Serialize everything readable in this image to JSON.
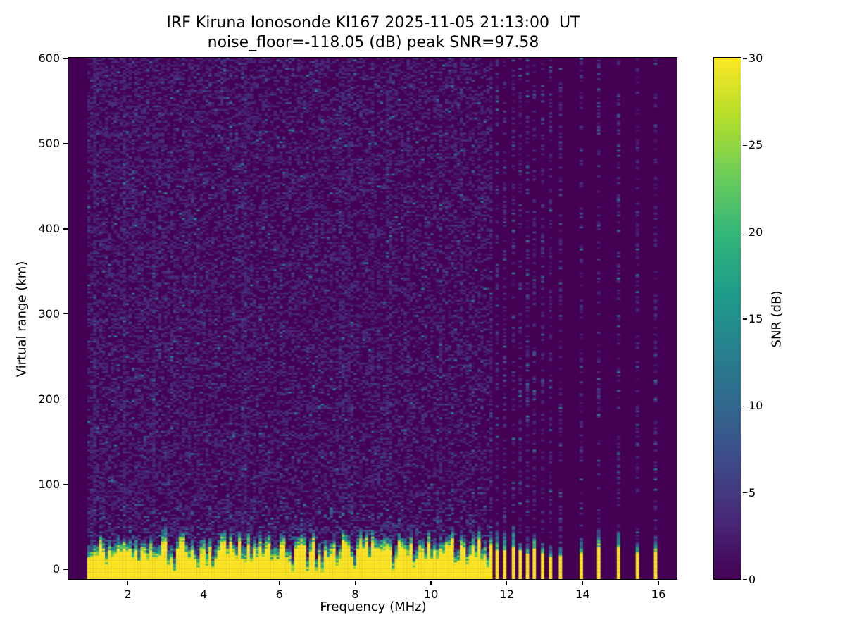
{
  "page": {
    "background": "#ffffff",
    "text_color": "#000000"
  },
  "chart_data": {
    "type": "heatmap",
    "title": "IRF Kiruna Ionosonde KI167 2025-11-05 21:13:00  UT",
    "subtitle": "noise_floor=-118.05 (dB) peak SNR=97.58",
    "station": "IRF Kiruna Ionosonde KI167",
    "datetime_ut": "2025-11-05 21:13:00",
    "noise_floor_db": -118.05,
    "peak_snr_db": 97.58,
    "xlabel": "Frequency (MHz)",
    "ylabel": "Virtual range (km)",
    "colorbar_label": "SNR (dB)",
    "x_ticks": [
      2,
      4,
      6,
      8,
      10,
      12,
      14,
      16
    ],
    "y_ticks": [
      0,
      100,
      200,
      300,
      400,
      500,
      600
    ],
    "colorbar_ticks": [
      0,
      5,
      10,
      15,
      20,
      25,
      30
    ],
    "xlim": [
      0.45,
      16.5
    ],
    "ylim": [
      -12,
      600
    ],
    "clim": [
      0,
      30
    ],
    "grid": false,
    "legend": "colorbar-right",
    "colormap": "viridis",
    "viridis_stops": [
      "#440154",
      "#482878",
      "#3e4a89",
      "#31688e",
      "#26828e",
      "#1f9e89",
      "#35b779",
      "#6ece58",
      "#b5de2b",
      "#fde725"
    ],
    "sweep": {
      "f_start_mhz": 0.95,
      "f_end_mhz": 11.62,
      "f_step_mhz": 0.078,
      "range_start_km": -12,
      "range_end_km": 600,
      "range_step_km": 2
    },
    "discrete_channels_mhz": [
      11.76,
      11.96,
      12.19,
      12.37,
      12.56,
      12.74,
      12.96,
      13.17,
      13.43,
      13.98,
      14.44,
      14.96,
      15.46,
      15.94
    ],
    "ground_clutter": {
      "snr_db": 30,
      "top_km_mean": 30,
      "top_km_jitter": 13,
      "notch_freqs_mhz": [
        3.05,
        4.25,
        6.3,
        6.95,
        7.5,
        8.0,
        8.95,
        9.55,
        10.6,
        11.5
      ]
    },
    "noise": {
      "background_snr_db": 0,
      "speckle_typ_db": 3,
      "speckle_max_db": 13,
      "seed": 20251105
    }
  }
}
